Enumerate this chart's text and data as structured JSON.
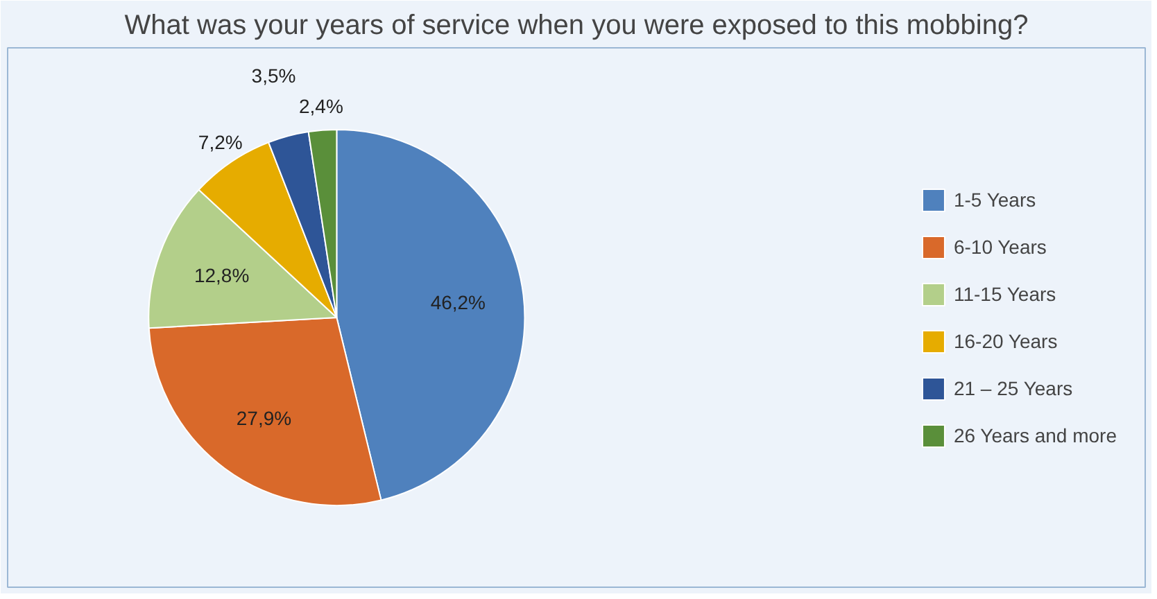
{
  "chart_data": {
    "type": "pie",
    "title": "What was your years of service when you were exposed to this mobbing?",
    "categories": [
      "1-5 Years",
      "6-10 Years",
      "11-15 Years",
      "16-20 Years",
      "21 – 25 Years",
      "26 Years and more"
    ],
    "values": [
      46.2,
      27.9,
      12.8,
      7.2,
      3.5,
      2.4
    ],
    "colors": [
      "#4f81bd",
      "#d9692a",
      "#b3cf8a",
      "#e6ac00",
      "#2e5597",
      "#5a8f3a"
    ],
    "value_labels": [
      "46,2%",
      "27,9%",
      "12,8%",
      "7,2%",
      "3,5%",
      "2,4%"
    ],
    "legend": "right"
  }
}
